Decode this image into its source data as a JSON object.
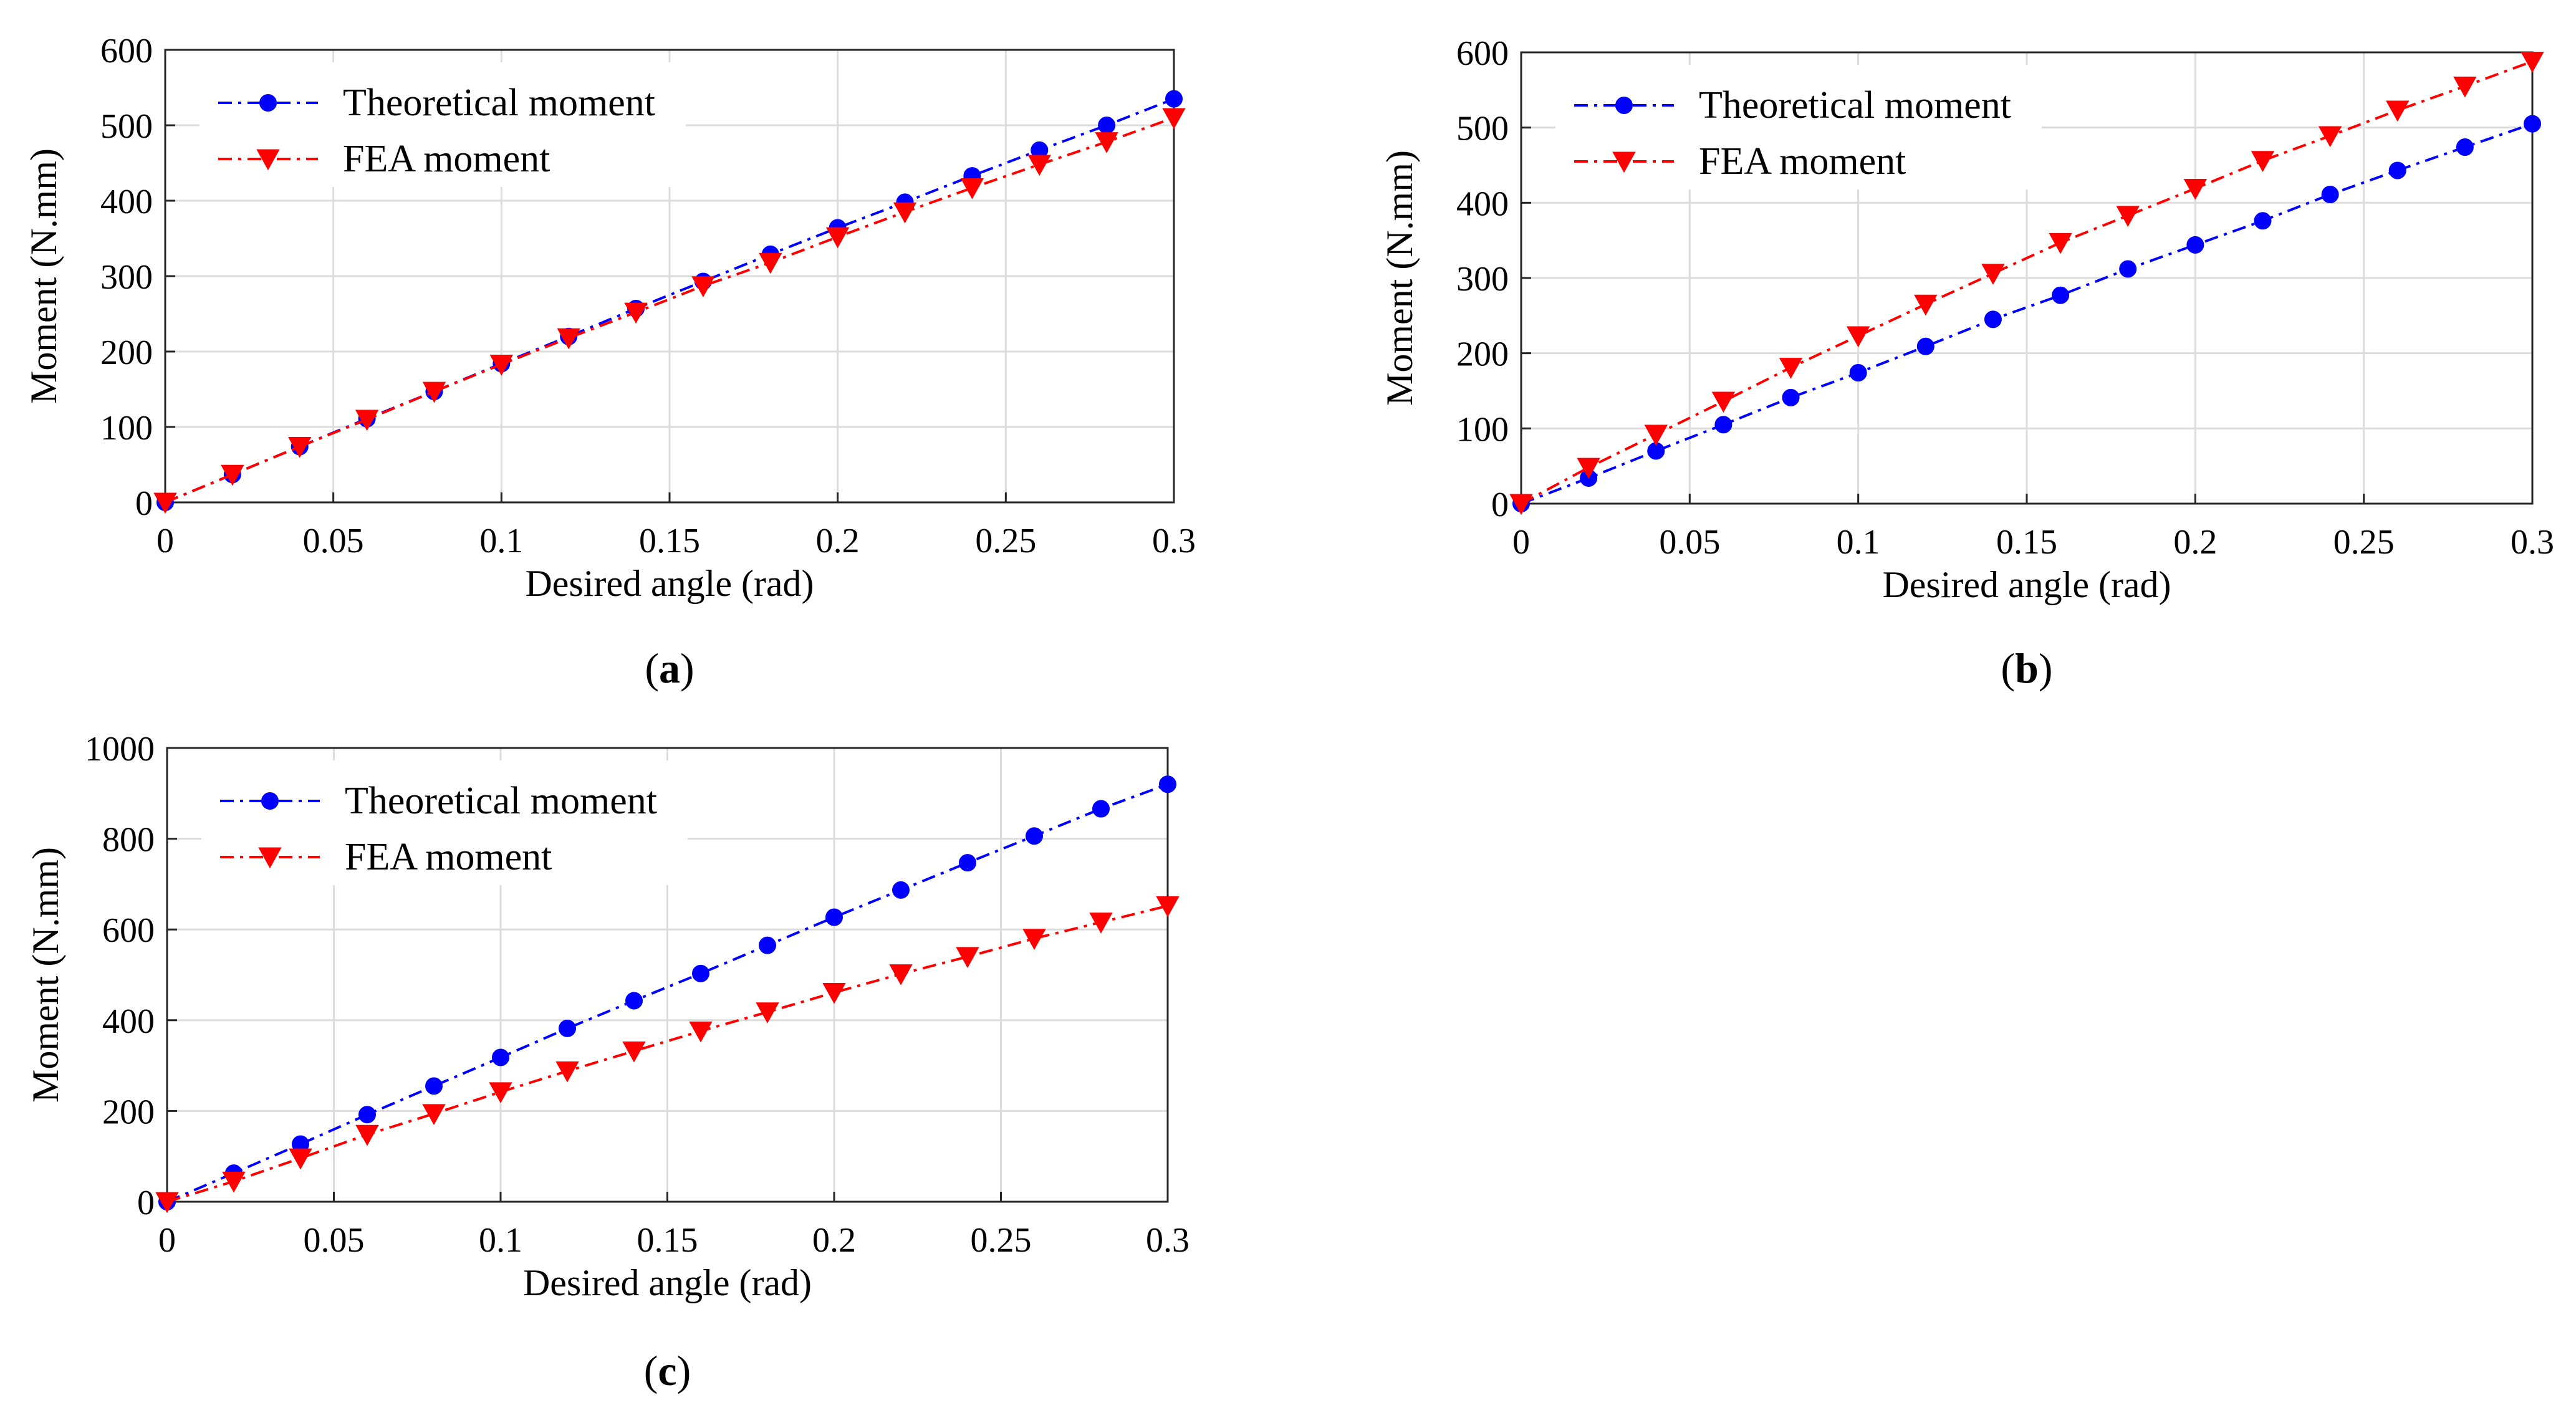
{
  "chart_data": [
    {
      "type": "line",
      "panel": "a",
      "caption_letter": "a",
      "xlabel": "Desired angle (rad)",
      "ylabel": "Moment (N.mm)",
      "xlim": [
        0,
        0.3
      ],
      "ylim": [
        0,
        600
      ],
      "grid": true,
      "legend_position": "top-left",
      "x_ticks": [
        "0",
        "0.05",
        "0.1",
        "0.15",
        "0.2",
        "0.25",
        "0.3"
      ],
      "y_ticks": [
        "0",
        "100",
        "200",
        "300",
        "400",
        "500",
        "600"
      ],
      "x": [
        0,
        0.02,
        0.04,
        0.06,
        0.08,
        0.1,
        0.12,
        0.14,
        0.16,
        0.18,
        0.2,
        0.22,
        0.24,
        0.26,
        0.28,
        0.3
      ],
      "series": [
        {
          "name": "Theoretical moment",
          "color": "#0000ff",
          "marker": "circle",
          "values": [
            0,
            37,
            74,
            111,
            147,
            184,
            220,
            257,
            293,
            329,
            364,
            398,
            433,
            467,
            500,
            535
          ]
        },
        {
          "name": "FEA moment",
          "color": "#ff0000",
          "marker": "triangle-down",
          "values": [
            0,
            37,
            74,
            110,
            147,
            183,
            218,
            252,
            287,
            318,
            352,
            385,
            417,
            448,
            478,
            510
          ]
        }
      ]
    },
    {
      "type": "line",
      "panel": "b",
      "caption_letter": "b",
      "xlabel": "Desired angle (rad)",
      "ylabel": "Moment (N.mm)",
      "xlim": [
        0,
        0.3
      ],
      "ylim": [
        0,
        600
      ],
      "grid": true,
      "legend_position": "top-left",
      "x_ticks": [
        "0",
        "0.05",
        "0.1",
        "0.15",
        "0.2",
        "0.25",
        "0.3"
      ],
      "y_ticks": [
        "0",
        "100",
        "200",
        "300",
        "400",
        "500",
        "600"
      ],
      "x": [
        0,
        0.02,
        0.04,
        0.06,
        0.08,
        0.1,
        0.12,
        0.14,
        0.16,
        0.18,
        0.2,
        0.22,
        0.24,
        0.26,
        0.28,
        0.3
      ],
      "series": [
        {
          "name": "Theoretical moment",
          "color": "#0000ff",
          "marker": "circle",
          "values": [
            0,
            34,
            70,
            105,
            141,
            174,
            209,
            245,
            277,
            312,
            344,
            376,
            411,
            443,
            474,
            505
          ]
        },
        {
          "name": "FEA moment",
          "color": "#ff0000",
          "marker": "triangle-down",
          "values": [
            0,
            48,
            92,
            136,
            181,
            223,
            265,
            306,
            347,
            383,
            419,
            456,
            489,
            523,
            555,
            588
          ]
        }
      ]
    },
    {
      "type": "line",
      "panel": "c",
      "caption_letter": "c",
      "xlabel": "Desired angle (rad)",
      "ylabel": "Moment (N.mm)",
      "xlim": [
        0,
        0.3
      ],
      "ylim": [
        0,
        1000
      ],
      "grid": true,
      "legend_position": "top-left",
      "x_ticks": [
        "0",
        "0.05",
        "0.1",
        "0.15",
        "0.2",
        "0.25",
        "0.3"
      ],
      "y_ticks": [
        "0",
        "200",
        "400",
        "600",
        "800",
        "1000"
      ],
      "x": [
        0,
        0.02,
        0.04,
        0.06,
        0.08,
        0.1,
        0.12,
        0.14,
        0.16,
        0.18,
        0.2,
        0.22,
        0.24,
        0.26,
        0.28,
        0.3
      ],
      "series": [
        {
          "name": "Theoretical moment",
          "color": "#0000ff",
          "marker": "circle",
          "values": [
            0,
            63,
            127,
            192,
            255,
            318,
            382,
            443,
            503,
            565,
            627,
            687,
            747,
            806,
            866,
            920
          ]
        },
        {
          "name": "FEA moment",
          "color": "#ff0000",
          "marker": "triangle-down",
          "values": [
            0,
            45,
            96,
            148,
            194,
            242,
            288,
            332,
            376,
            418,
            461,
            502,
            540,
            580,
            616,
            652
          ]
        }
      ]
    }
  ]
}
